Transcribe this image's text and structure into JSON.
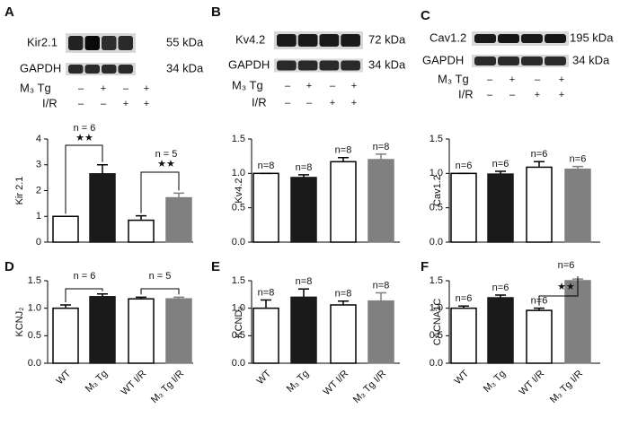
{
  "panel_labels": [
    "A",
    "B",
    "C",
    "D",
    "E",
    "F"
  ],
  "blots": [
    {
      "protein": "Kir2.1",
      "protein_size": "55 kDa",
      "loading": "GAPDH",
      "loading_size": "34 kDa",
      "treatments": [
        {
          "label": "M₃ Tg",
          "signs": [
            "–",
            "+",
            "–",
            "+"
          ]
        },
        {
          "label": "I/R",
          "signs": [
            "–",
            "–",
            "+",
            "+"
          ]
        }
      ]
    },
    {
      "protein": "Kv4.2",
      "protein_size": "72 kDa",
      "loading": "GAPDH",
      "loading_size": "34 kDa",
      "treatments": [
        {
          "label": "M₃ Tg",
          "signs": [
            "–",
            "+",
            "–",
            "+"
          ]
        },
        {
          "label": "I/R",
          "signs": [
            "–",
            "–",
            "+",
            "+"
          ]
        }
      ]
    },
    {
      "protein": "Cav1.2",
      "protein_size": "195 kDa",
      "loading": "GAPDH",
      "loading_size": "34 kDa",
      "treatments": [
        {
          "label": "M₃ Tg",
          "signs": [
            "–",
            "+",
            "–",
            "+"
          ]
        },
        {
          "label": "I/R",
          "signs": [
            "–",
            "–",
            "+",
            "+"
          ]
        }
      ]
    }
  ],
  "chart_data": [
    {
      "type": "bar",
      "ylabel": "Kir 2.1",
      "categories": [
        null,
        null,
        null,
        null
      ],
      "values": [
        1.0,
        2.65,
        0.85,
        1.72
      ],
      "errors": [
        0,
        0.35,
        0.17,
        0.18
      ],
      "colors": [
        "#ffffff",
        "#1a1a1a",
        "#ffffff",
        "#808080"
      ],
      "ylim": [
        0,
        4
      ],
      "yticks": [
        0,
        1,
        2,
        3,
        4
      ],
      "annotations": [
        "n = 6",
        "★★",
        "n = 5",
        "★★"
      ]
    },
    {
      "type": "bar",
      "ylabel": "Kv4.2",
      "categories": [
        null,
        null,
        null,
        null
      ],
      "values": [
        1.0,
        0.94,
        1.17,
        1.2
      ],
      "errors": [
        0,
        0.04,
        0.06,
        0.08
      ],
      "colors": [
        "#ffffff",
        "#1a1a1a",
        "#ffffff",
        "#808080"
      ],
      "ylim": [
        0,
        1.5
      ],
      "yticks": [
        {
          "value": 0,
          "label": "0.0"
        },
        0.5,
        {
          "value": 1,
          "label": "1.0"
        },
        1.5
      ],
      "bar_notes": [
        "n=8",
        "n=8",
        "n=8",
        "n=8"
      ]
    },
    {
      "type": "bar",
      "ylabel": "Cav1.2",
      "categories": [
        null,
        null,
        null,
        null
      ],
      "values": [
        1.0,
        0.99,
        1.09,
        1.06
      ],
      "errors": [
        0,
        0.04,
        0.08,
        0.04
      ],
      "colors": [
        "#ffffff",
        "#1a1a1a",
        "#ffffff",
        "#808080"
      ],
      "ylim": [
        0,
        1.5
      ],
      "yticks": [
        {
          "value": 0,
          "label": "0.0"
        },
        0.5,
        {
          "value": 1,
          "label": "1.0"
        },
        1.5
      ],
      "bar_notes": [
        "n=6",
        "n=6",
        "n=6",
        "n=6"
      ]
    },
    {
      "type": "bar",
      "ylabel": "KCNJ₂",
      "categories": [
        "WT",
        "M₃ Tg",
        "WT I/R",
        "M₃ Tg I/R"
      ],
      "values": [
        1.0,
        1.21,
        1.17,
        1.17
      ],
      "errors": [
        0.06,
        0.05,
        0.03,
        0.03
      ],
      "colors": [
        "#ffffff",
        "#1a1a1a",
        "#ffffff",
        "#808080"
      ],
      "ylim": [
        0,
        1.5
      ],
      "yticks": [
        {
          "value": 0,
          "label": "0.0"
        },
        0.5,
        {
          "value": 1,
          "label": "1.0"
        },
        1.5
      ],
      "annotations": [
        "n = 6",
        "n = 5"
      ]
    },
    {
      "type": "bar",
      "ylabel": "KCND₂",
      "categories": [
        "WT",
        "M₃ Tg",
        "WT I/R",
        "M₃ Tg I/R"
      ],
      "values": [
        1.0,
        1.2,
        1.06,
        1.13
      ],
      "errors": [
        0.15,
        0.15,
        0.07,
        0.15
      ],
      "colors": [
        "#ffffff",
        "#1a1a1a",
        "#ffffff",
        "#808080"
      ],
      "ylim": [
        0,
        1.5
      ],
      "yticks": [
        {
          "value": 0,
          "label": "0.0"
        },
        0.5,
        {
          "value": 1,
          "label": "1.0"
        },
        1.5
      ],
      "bar_notes": [
        "n=8",
        "n=8",
        "n=8",
        "n=8"
      ]
    },
    {
      "type": "bar",
      "ylabel": "CACNA1C",
      "categories": [
        "WT",
        "M₃ Tg",
        "WT I/R",
        "M₃ Tg I/R"
      ],
      "values": [
        1.0,
        1.19,
        0.96,
        1.5
      ],
      "errors": [
        0.04,
        0.05,
        0.04,
        0.03
      ],
      "colors": [
        "#ffffff",
        "#1a1a1a",
        "#ffffff",
        "#808080"
      ],
      "ylim": [
        0,
        1.5
      ],
      "yticks": [
        {
          "value": 0,
          "label": "0.0"
        },
        0.5,
        {
          "value": 1,
          "label": "1.0"
        },
        1.5
      ],
      "bar_notes": [
        "n=6",
        "n=6",
        "n=6",
        null
      ],
      "annotations": [
        "n=6",
        "★★"
      ]
    }
  ]
}
